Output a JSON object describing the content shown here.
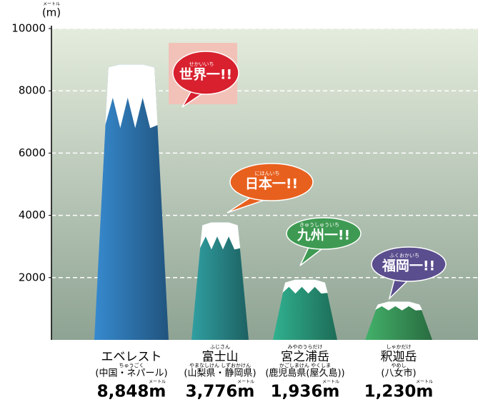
{
  "chart_data": {
    "type": "bar",
    "unit": "(m)",
    "unit_ruby": "メートル",
    "ylim": [
      0,
      10000
    ],
    "yticks": [
      2000,
      4000,
      6000,
      8000,
      10000
    ],
    "grid": true,
    "categories": [
      "エベレスト",
      "富士山",
      "宮之浦岳",
      "釈迦岳"
    ],
    "category_ruby": [
      null,
      "ふじさん",
      "みやのうらだけ",
      "しゃかだけ"
    ],
    "regions": [
      "(中国・ネパール)",
      "(山梨県・静岡県)",
      "(鹿児島県(屋久島))",
      "(八女市)"
    ],
    "region_ruby": [
      "ちゅうごく",
      "やまなしけん しずおかけん",
      "かごしまけん やくしま",
      "やめし"
    ],
    "values": [
      8848,
      3776,
      1936,
      1230
    ],
    "value_labels": [
      "8,848m",
      "3,776m",
      "1,936m",
      "1,230m"
    ],
    "value_unit_ruby": "メートル",
    "colors": [
      "#2f78b4",
      "#2a8a8c",
      "#2a9a7c",
      "#3a9a5c"
    ],
    "badges": [
      "世界一!!",
      "日本一!!",
      "九州一!!",
      "福岡一!!"
    ],
    "badge_ruby": [
      "せかいいち",
      "にほんいち",
      "きゅうしゅういち",
      "ふくおかいち"
    ],
    "badge_colors": [
      "#d8202e",
      "#e8601e",
      "#3e9a52",
      "#5a4e8e"
    ]
  }
}
